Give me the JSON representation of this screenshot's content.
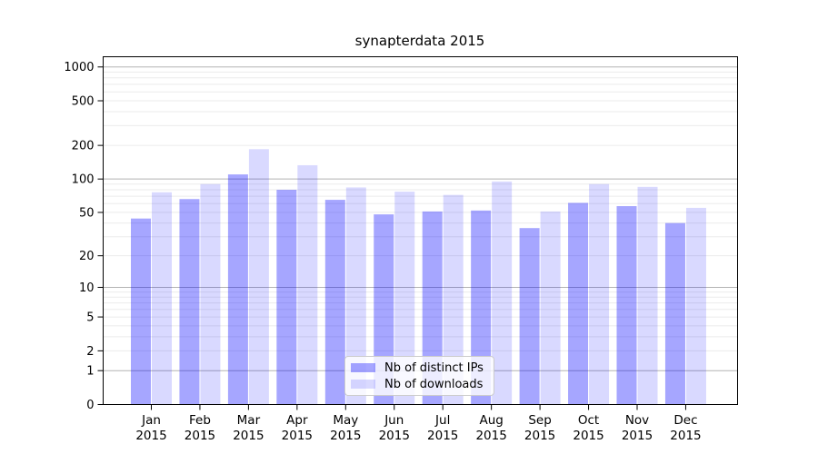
{
  "chart_data": {
    "type": "bar",
    "title": "synapterdata 2015",
    "xlabel": "",
    "ylabel": "",
    "yscale": "log1p",
    "ylim": [
      0,
      1230
    ],
    "yticks": [
      0,
      1,
      2,
      5,
      10,
      20,
      50,
      100,
      200,
      500,
      1000
    ],
    "grid": "horizontal, major and minor log lines",
    "legend_position": "lower center",
    "categories": [
      "Jan",
      "Feb",
      "Mar",
      "Apr",
      "May",
      "Jun",
      "Jul",
      "Aug",
      "Sep",
      "Oct",
      "Nov",
      "Dec"
    ],
    "year": "2015",
    "series": [
      {
        "name": "Nb of distinct IPs",
        "color": "#a6a6ff",
        "fill": "rgba(0,0,255,0.35)",
        "values": [
          44,
          66,
          110,
          80,
          65,
          48,
          51,
          52,
          36,
          61,
          57,
          40
        ]
      },
      {
        "name": "Nb of downloads",
        "color": "#d9d9ff",
        "fill": "rgba(0,0,255,0.15)",
        "values": [
          76,
          90,
          185,
          133,
          84,
          77,
          72,
          95,
          51,
          90,
          85,
          55
        ]
      }
    ],
    "colors": {
      "major_grid": "#b3b3b3",
      "minor_grid": "#ebebeb",
      "spine": "#000000",
      "text": "#000000"
    }
  }
}
